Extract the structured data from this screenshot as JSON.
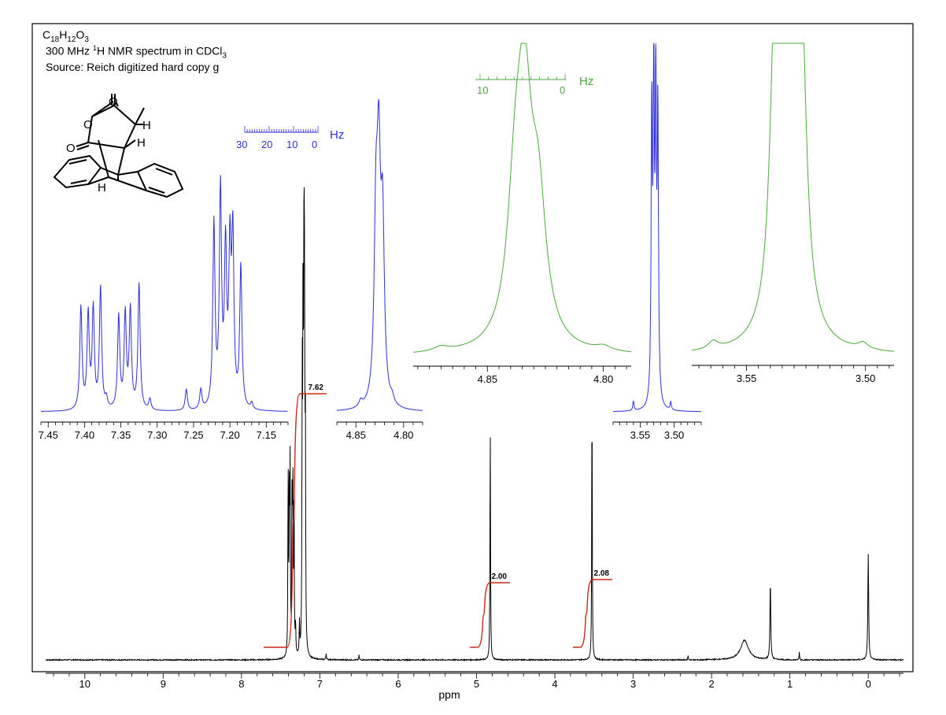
{
  "header": {
    "formula": {
      "c": "C",
      "c_n": "18",
      "h": "H",
      "h_n": "12",
      "o": "O",
      "o_n": "3"
    },
    "line2_a": "300 MHz ",
    "line2_sup": "1",
    "line2_b": "H NMR spectrum in CDCl",
    "line2_sub": "3",
    "line3": "Source: Reich digitized hard copy g"
  },
  "structure_labels": {
    "o_carbonyl_top": "O",
    "o_ring": "O",
    "o_carbonyl_left": "O",
    "h1": "H",
    "h2": "H",
    "h3": "H"
  },
  "hz_scales": [
    {
      "color": "#2f2fdc",
      "ticks": [
        "30",
        "20",
        "10",
        "0"
      ],
      "unit": "Hz"
    },
    {
      "color": "#4aaa3a",
      "ticks": [
        "10",
        "0"
      ],
      "unit": "Hz"
    }
  ],
  "chart_data": {
    "type": "line",
    "xlabel": "ppm",
    "xlim": [
      10.5,
      -0.45
    ],
    "x_ticks": [
      "10",
      "9",
      "8",
      "7",
      "6",
      "5",
      "4",
      "3",
      "2",
      "1",
      "0"
    ],
    "peaks_ppm": [
      7.4,
      7.38,
      7.35,
      7.33,
      7.22,
      7.21,
      7.2,
      4.83,
      3.53,
      1.58,
      1.25,
      0.88,
      0.0
    ],
    "integrals": [
      {
        "label": "7.62",
        "from": 7.65,
        "to": 7.12
      },
      {
        "label": "2.00",
        "from": 4.95,
        "to": 4.7
      },
      {
        "label": "2.08",
        "from": 3.62,
        "to": 3.43
      }
    ],
    "insets": [
      {
        "name": "aromatic",
        "color": "#2f2fdc",
        "xlim": [
          7.46,
          7.12
        ],
        "ticks": [
          "7.45",
          "7.40",
          "7.35",
          "7.30",
          "7.25",
          "7.20",
          "7.15"
        ]
      },
      {
        "name": "4.83 small",
        "color": "#2f2fdc",
        "xlim": [
          4.87,
          4.78
        ],
        "ticks": [
          "4.85",
          "4.80"
        ]
      },
      {
        "name": "3.53 small",
        "color": "#2f2fdc",
        "xlim": [
          3.59,
          3.46
        ],
        "ticks": [
          "3.55",
          "3.50"
        ]
      },
      {
        "name": "4.83 expanded",
        "color": "#4aaa3a",
        "xlim": [
          4.882,
          4.788
        ],
        "ticks": [
          "4.85",
          "4.80"
        ]
      },
      {
        "name": "3.53 expanded",
        "color": "#4aaa3a",
        "xlim": [
          3.573,
          3.488
        ],
        "ticks": [
          "3.55",
          "3.50"
        ]
      }
    ]
  }
}
